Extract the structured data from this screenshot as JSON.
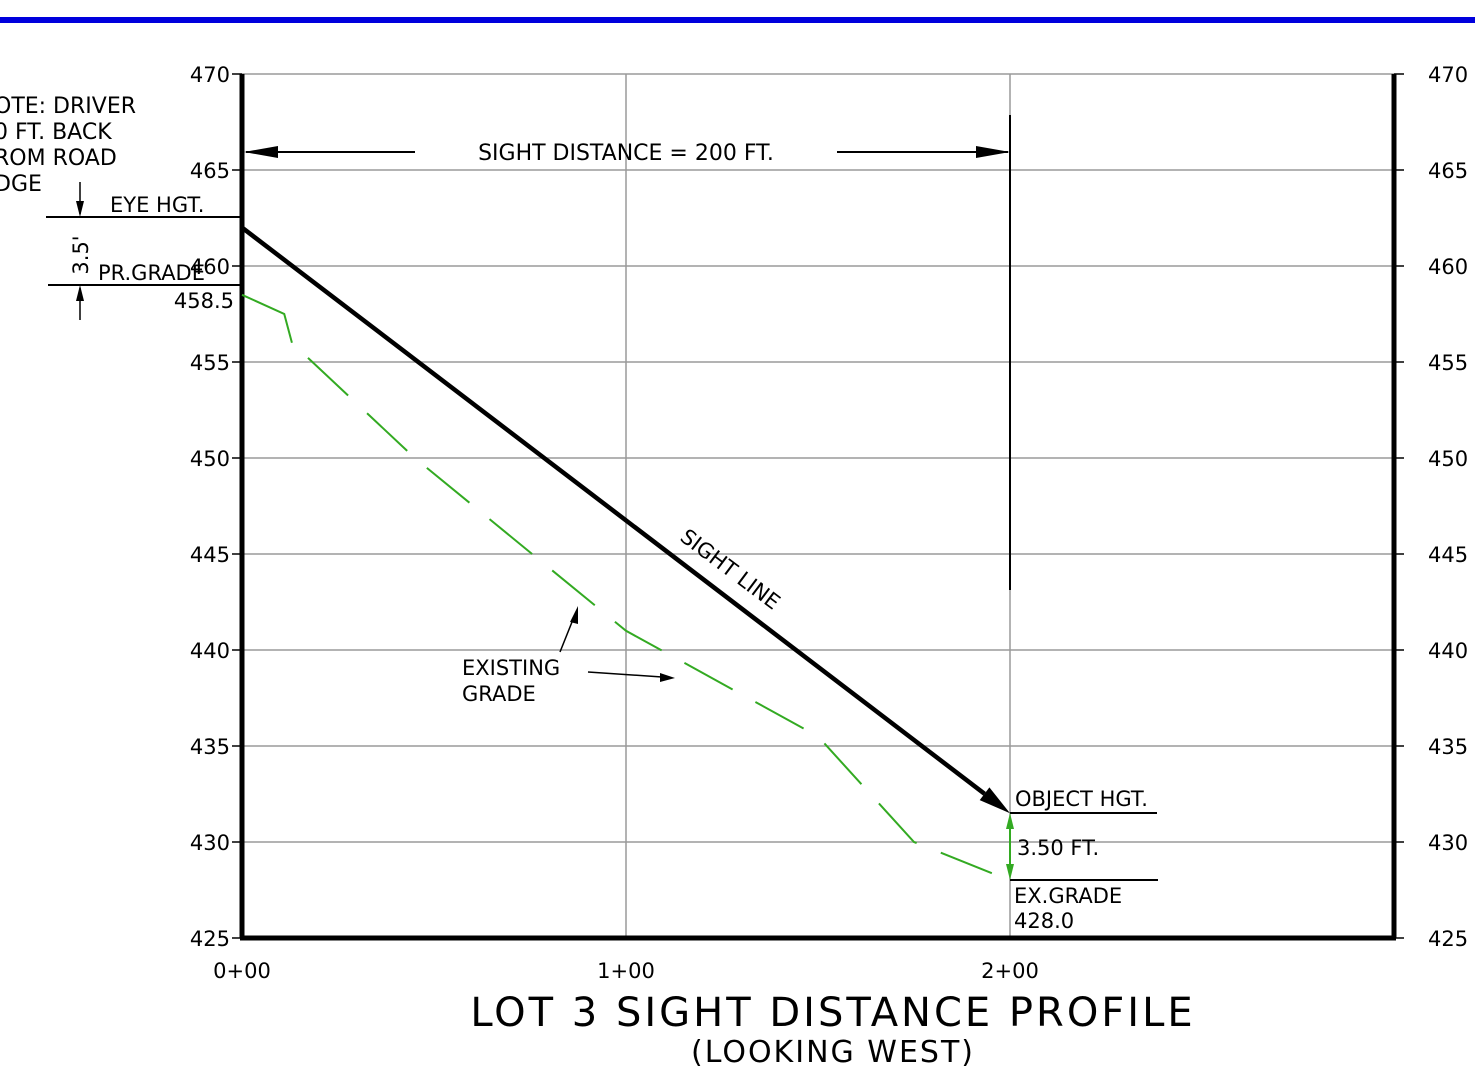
{
  "colors": {
    "border_top": "#0000dd",
    "grid": "#9a9a9a",
    "frame": "#000000",
    "existing_grade": "#33aa22",
    "sight_line": "#000000"
  },
  "chart_data": {
    "type": "line",
    "title": "LOT 3 SIGHT DISTANCE PROFILE",
    "subtitle": "(LOOKING WEST)",
    "x_ticks": [
      "0+00",
      "1+00",
      "2+00"
    ],
    "xlim": [
      0,
      300
    ],
    "ylim": [
      425,
      470
    ],
    "y_ticks_left": [
      "470",
      "465",
      "460",
      "455",
      "450",
      "445",
      "440",
      "435",
      "430",
      "425"
    ],
    "y_ticks_right": [
      "470",
      "465",
      "460",
      "455",
      "450",
      "445",
      "440",
      "435",
      "430",
      "425"
    ],
    "grid": true,
    "series": [
      {
        "name": "SIGHT LINE",
        "points": [
          [
            0,
            462.0
          ],
          [
            200,
            431.5
          ]
        ]
      },
      {
        "name": "EXISTING GRADE",
        "points": [
          [
            0,
            458.5
          ],
          [
            11,
            457.5
          ],
          [
            13,
            456.0
          ],
          [
            45,
            450.0
          ],
          [
            100,
            441.0
          ],
          [
            150,
            435.5
          ],
          [
            175,
            430.0
          ],
          [
            200,
            428.0
          ]
        ]
      }
    ],
    "annotations": {
      "note_lines": [
        "OTE: DRIVER",
        "0 FT. BACK",
        "ROM ROAD",
        "DGE"
      ],
      "sight_distance": "SIGHT DISTANCE = 200 FT.",
      "eye_height": "EYE HGT.",
      "eye_dim": "3.5'",
      "pr_grade": "PR.GRADE",
      "pr_grade_value": "458.5",
      "sight_line_label": "SIGHT LINE",
      "existing_grade_lines": [
        "EXISTING",
        "GRADE"
      ],
      "object_height": "OBJECT HGT.",
      "object_dim": "3.50 FT.",
      "ex_grade": "EX.GRADE",
      "ex_grade_value": "428.0"
    }
  }
}
